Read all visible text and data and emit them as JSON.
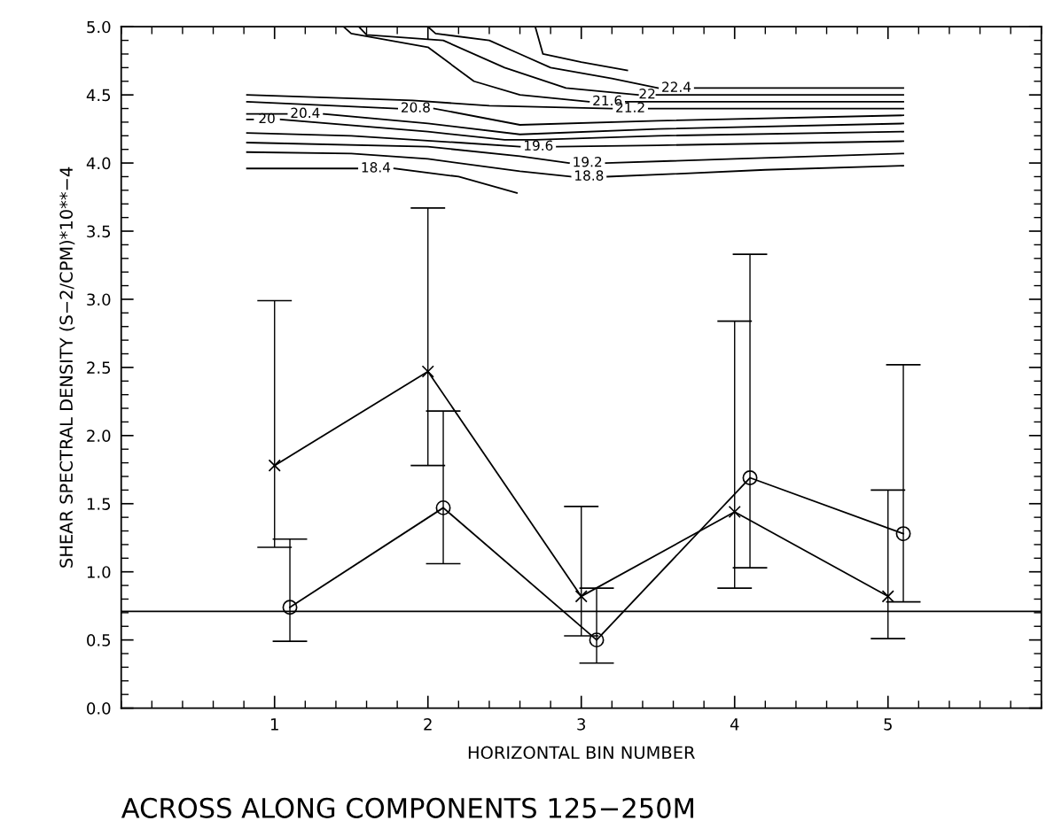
{
  "chart_data": {
    "type": "line",
    "title": "ACROSS ALONG COMPONENTS 125−250M",
    "xlabel": "HORIZONTAL BIN NUMBER",
    "ylabel": "SHEAR SPECTRAL DENSITY (S−2/CPM)*10**−4",
    "xlim": [
      0,
      6
    ],
    "xticks": [
      1,
      2,
      3,
      4,
      5
    ],
    "ylim": [
      0,
      5
    ],
    "yticks": [
      {
        "value": 0,
        "label": "0.0"
      },
      {
        "value": 0.5,
        "label": "0.5"
      },
      {
        "value": 1,
        "label": "1.0"
      },
      {
        "value": 1.5,
        "label": "1.5"
      },
      {
        "value": 2,
        "label": "2.0"
      },
      {
        "value": 2.5,
        "label": "2.5"
      },
      {
        "value": 3,
        "label": "3.0"
      },
      {
        "value": 3.5,
        "label": "3.5"
      },
      {
        "value": 4,
        "label": "4.0"
      },
      {
        "value": 4.5,
        "label": "4.5"
      },
      {
        "value": 5,
        "label": "5.0"
      }
    ],
    "grid": false,
    "legend": false,
    "line_style": "solid",
    "ref_lines": [
      {
        "axis": "y",
        "value": 0.71,
        "color": "#000000"
      }
    ],
    "series": [
      {
        "color": "#000000",
        "marker": "cross",
        "x": [
          1,
          2,
          3,
          4,
          5
        ],
        "values": [
          1.78,
          2.47,
          0.82,
          1.44,
          0.82
        ],
        "errors": [
          [
            1.18,
            2.99
          ],
          [
            1.78,
            3.67
          ],
          [
            0.53,
            1.48
          ],
          [
            0.88,
            2.84
          ],
          [
            0.51,
            1.6
          ]
        ]
      },
      {
        "color": "#000000",
        "marker": "circle",
        "x": [
          1.1,
          2.1,
          3.1,
          4.1,
          5.1
        ],
        "values": [
          0.74,
          1.47,
          0.5,
          1.69,
          1.28
        ],
        "errors": [
          [
            0.49,
            1.24
          ],
          [
            1.06,
            2.18
          ],
          [
            0.33,
            0.88
          ],
          [
            1.03,
            3.33
          ],
          [
            0.78,
            2.52
          ]
        ]
      },
      {
        "name": "18.4",
        "color": "#000000",
        "marker": "none",
        "x": [
          0.82,
          1.54,
          1.66,
          1.78,
          2.2,
          2.58
        ],
        "values": [
          3.96,
          3.96,
          null,
          3.96,
          3.9,
          3.78
        ]
      },
      {
        "name": "18.8",
        "color": "#000000",
        "marker": "none",
        "x": [
          0.82,
          1.5,
          2.0,
          2.6,
          2.93,
          3.05,
          3.17,
          3.6,
          4.2,
          5.1
        ],
        "values": [
          4.08,
          4.07,
          4.03,
          3.94,
          3.9,
          null,
          3.9,
          3.92,
          3.95,
          3.98
        ]
      },
      {
        "name": "19.2",
        "color": "#000000",
        "marker": "none",
        "x": [
          0.82,
          2.0,
          2.6,
          2.92,
          3.04,
          3.16,
          4.0,
          5.1
        ],
        "values": [
          4.15,
          4.12,
          4.05,
          4.0,
          null,
          4.0,
          4.03,
          4.07
        ]
      },
      {
        "name": "19.6",
        "color": "#000000",
        "marker": "none",
        "x": [
          0.82,
          1.5,
          2.2,
          2.6,
          2.72,
          2.84,
          3.5,
          5.1
        ],
        "values": [
          4.22,
          4.2,
          4.15,
          4.12,
          null,
          4.12,
          4.13,
          4.16
        ]
      },
      {
        "name": "20",
        "color": "#000000",
        "marker": "none",
        "x": [
          0.82,
          0.86,
          0.95,
          1.04,
          2.0,
          2.5,
          2.7,
          3.5,
          5.1
        ],
        "values": [
          4.32,
          4.32,
          null,
          4.32,
          4.23,
          4.17,
          4.17,
          4.2,
          4.23
        ]
      },
      {
        "name": "20.4",
        "color": "#000000",
        "marker": "none",
        "x": [
          0.82,
          1.08,
          1.2,
          1.32,
          2.0,
          2.6,
          3.5,
          5.1
        ],
        "values": [
          4.36,
          4.36,
          null,
          4.36,
          4.29,
          4.21,
          4.25,
          4.29
        ]
      },
      {
        "name": "20.8",
        "color": "#000000",
        "marker": "none",
        "x": [
          0.82,
          1.8,
          1.92,
          2.04,
          2.6,
          3.5,
          5.1
        ],
        "values": [
          4.45,
          4.4,
          null,
          4.4,
          4.28,
          4.31,
          4.35
        ]
      },
      {
        "name": "21.2",
        "color": "#000000",
        "marker": "none",
        "x": [
          0.82,
          1.9,
          2.4,
          3.2,
          3.32,
          3.44,
          5.1
        ],
        "values": [
          4.5,
          4.46,
          4.42,
          4.4,
          null,
          4.4,
          4.4
        ]
      },
      {
        "name": "21.6",
        "color": "#000000",
        "marker": "none",
        "x": [
          1.45,
          1.5,
          2.0,
          2.3,
          2.6,
          3.05,
          3.17,
          3.29,
          5.1
        ],
        "values": [
          5.0,
          4.95,
          4.85,
          4.6,
          4.5,
          4.45,
          null,
          4.45,
          4.45
        ]
      },
      {
        "name": "22",
        "color": "#000000",
        "marker": "none",
        "x": [
          1.55,
          1.6,
          2.1,
          2.5,
          2.9,
          3.37,
          3.43,
          3.49,
          5.1
        ],
        "values": [
          5.0,
          4.94,
          4.9,
          4.7,
          4.55,
          4.5,
          null,
          4.5,
          4.5
        ]
      },
      {
        "name": "22.4",
        "color": "#000000",
        "marker": "none",
        "x": [
          2.0,
          2.05,
          2.4,
          2.6,
          2.8,
          3.2,
          3.5,
          3.62,
          3.74,
          5.1
        ],
        "values": [
          5.0,
          4.95,
          4.9,
          4.8,
          4.7,
          4.62,
          4.55,
          null,
          4.55,
          4.55
        ]
      },
      {
        "color": "#000000",
        "marker": "none",
        "x": [
          2.7,
          2.75,
          3.0,
          3.3
        ],
        "values": [
          5.0,
          4.8,
          4.74,
          4.68
        ]
      }
    ]
  }
}
